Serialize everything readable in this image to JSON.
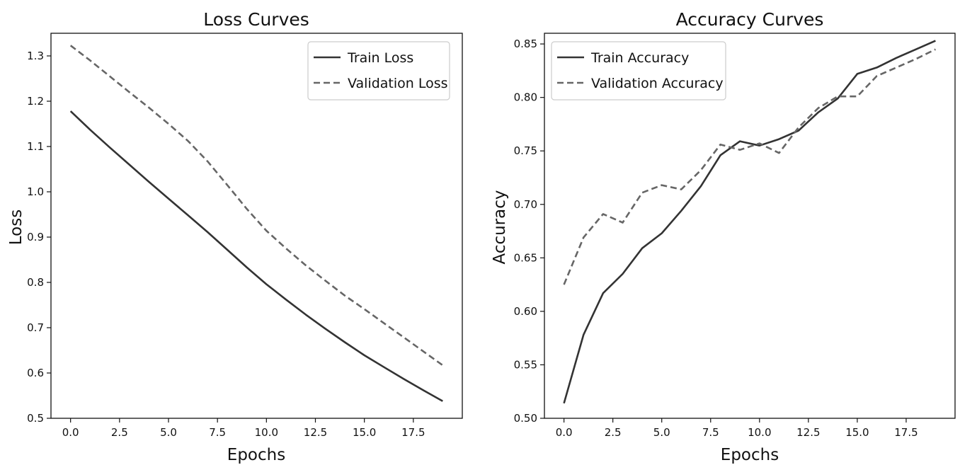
{
  "chart_data": [
    {
      "type": "line",
      "title": "Loss Curves",
      "xlabel": "Epochs",
      "ylabel": "Loss",
      "xlim": [
        -1,
        20
      ],
      "ylim": [
        0.5,
        1.35
      ],
      "xticks": [
        "0.0",
        "2.5",
        "5.0",
        "7.5",
        "10.0",
        "12.5",
        "15.0",
        "17.5"
      ],
      "xtick_values": [
        0,
        2.5,
        5,
        7.5,
        10,
        12.5,
        15,
        17.5
      ],
      "yticks": [
        "0.5",
        "0.6",
        "0.7",
        "0.8",
        "0.9",
        "1.0",
        "1.1",
        "1.2",
        "1.3"
      ],
      "ytick_values": [
        0.5,
        0.6,
        0.7,
        0.8,
        0.9,
        1.0,
        1.1,
        1.2,
        1.3
      ],
      "x": [
        0,
        1,
        2,
        3,
        4,
        5,
        6,
        7,
        8,
        9,
        10,
        11,
        12,
        13,
        14,
        15,
        16,
        17,
        18,
        19
      ],
      "series": [
        {
          "name": "Train Loss",
          "style": "solid",
          "color": "#333333",
          "values": [
            1.178,
            1.137,
            1.098,
            1.06,
            1.022,
            0.985,
            0.948,
            0.911,
            0.872,
            0.833,
            0.796,
            0.762,
            0.729,
            0.698,
            0.668,
            0.639,
            0.613,
            0.587,
            0.562,
            0.538
          ]
        },
        {
          "name": "Validation Loss",
          "style": "dashed",
          "color": "#666666",
          "values": [
            1.323,
            1.29,
            1.255,
            1.22,
            1.186,
            1.15,
            1.112,
            1.067,
            1.015,
            0.962,
            0.914,
            0.875,
            0.838,
            0.804,
            0.771,
            0.741,
            0.71,
            0.679,
            0.648,
            0.617
          ]
        }
      ],
      "legend": "top-right",
      "grid": false
    },
    {
      "type": "line",
      "title": "Accuracy Curves",
      "xlabel": "Epochs",
      "ylabel": "Accuracy",
      "xlim": [
        -1,
        20
      ],
      "ylim": [
        0.5,
        0.86
      ],
      "xticks": [
        "0.0",
        "2.5",
        "5.0",
        "7.5",
        "10.0",
        "12.5",
        "15.0",
        "17.5"
      ],
      "xtick_values": [
        0,
        2.5,
        5,
        7.5,
        10,
        12.5,
        15,
        17.5
      ],
      "yticks": [
        "0.50",
        "0.55",
        "0.60",
        "0.65",
        "0.70",
        "0.75",
        "0.80",
        "0.85"
      ],
      "ytick_values": [
        0.5,
        0.55,
        0.6,
        0.65,
        0.7,
        0.75,
        0.8,
        0.85
      ],
      "x": [
        0,
        1,
        2,
        3,
        4,
        5,
        6,
        7,
        8,
        9,
        10,
        11,
        12,
        13,
        14,
        15,
        16,
        17,
        18,
        19
      ],
      "series": [
        {
          "name": "Train Accuracy",
          "style": "solid",
          "color": "#333333",
          "values": [
            0.514,
            0.578,
            0.617,
            0.635,
            0.659,
            0.673,
            0.694,
            0.717,
            0.746,
            0.759,
            0.755,
            0.761,
            0.769,
            0.786,
            0.799,
            0.822,
            0.828,
            0.837,
            0.845,
            0.853
          ]
        },
        {
          "name": "Validation Accuracy",
          "style": "dashed",
          "color": "#666666",
          "values": [
            0.625,
            0.669,
            0.691,
            0.683,
            0.711,
            0.718,
            0.714,
            0.732,
            0.756,
            0.751,
            0.757,
            0.748,
            0.772,
            0.79,
            0.801,
            0.801,
            0.82,
            0.828,
            0.836,
            0.845
          ]
        }
      ],
      "legend": "top-left",
      "grid": false
    }
  ]
}
